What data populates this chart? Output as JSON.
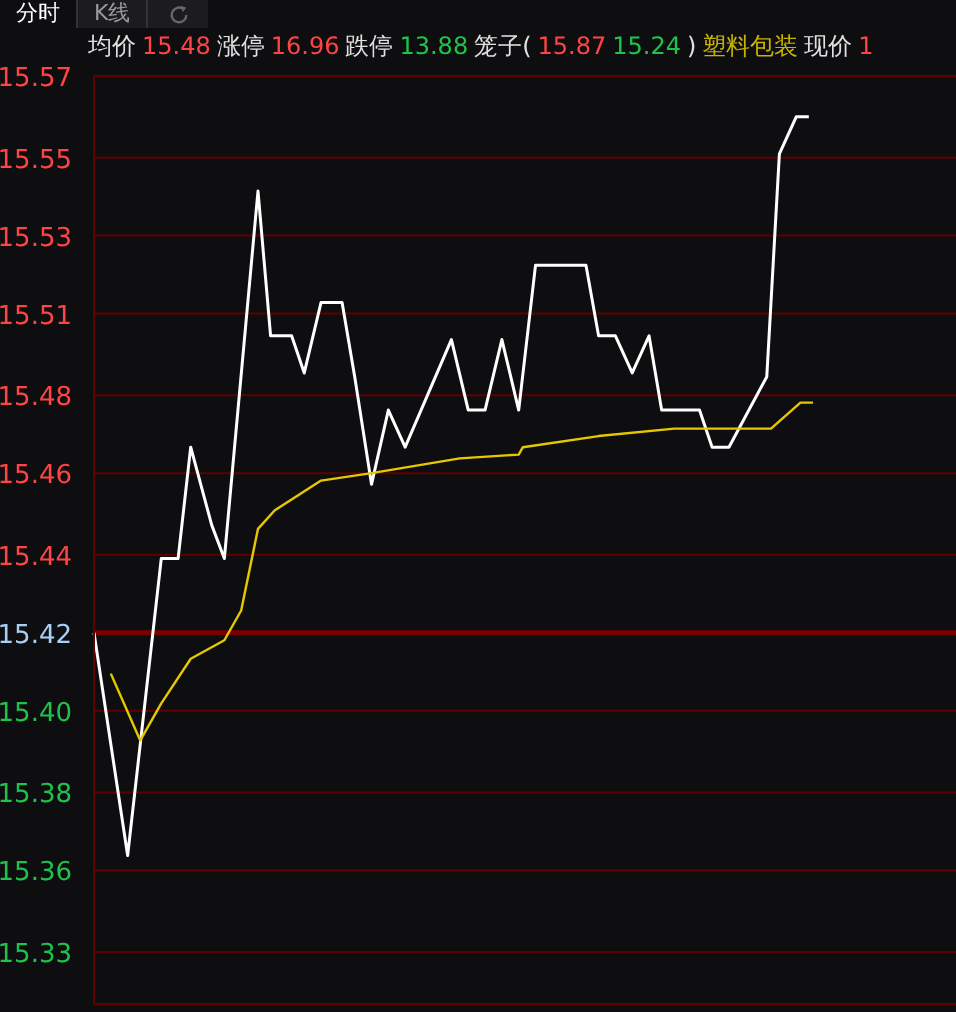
{
  "chart_data": {
    "type": "line",
    "categories": [
      null,
      null,
      null,
      null,
      null,
      null,
      null,
      null,
      null,
      null,
      null,
      null,
      null,
      null,
      null,
      null,
      null,
      null,
      null,
      null,
      null,
      null,
      null,
      null,
      null,
      null,
      null,
      null,
      null,
      null,
      null,
      null,
      null,
      null,
      null,
      null,
      null,
      null,
      null,
      null,
      null,
      null,
      null,
      null,
      null,
      null,
      null,
      null,
      null,
      null,
      null,
      null,
      null,
      null,
      null,
      null,
      null,
      null,
      null,
      null,
      null,
      null,
      null,
      null,
      null,
      null,
      null,
      null,
      null,
      null,
      null,
      null,
      null,
      null,
      null,
      null,
      null,
      null,
      null,
      null,
      null,
      null,
      null,
      null,
      null,
      null,
      null,
      null,
      null,
      null,
      null,
      null,
      null,
      null,
      null,
      null,
      null,
      null,
      null,
      null,
      null,
      null,
      null,
      null,
      null,
      null,
      null,
      null,
      null,
      null,
      null,
      null,
      null,
      null,
      null,
      null,
      null,
      null,
      null,
      null,
      null,
      null,
      null,
      null,
      null,
      null,
      null,
      null,
      null,
      null,
      null,
      null,
      null,
      null,
      null,
      null,
      null,
      null,
      null,
      null,
      null,
      null,
      null,
      null,
      null,
      null,
      null,
      null,
      null,
      null,
      null,
      null,
      null,
      null,
      null,
      null,
      null,
      null,
      null,
      null,
      null,
      null,
      null,
      null,
      null,
      null,
      null,
      null,
      null,
      null,
      null,
      null,
      null,
      null,
      null,
      null,
      null,
      null,
      null,
      null,
      null,
      null,
      null,
      null,
      null,
      null,
      null,
      null,
      null,
      null,
      null,
      null,
      null,
      null,
      null,
      null,
      null,
      null,
      null,
      null,
      null,
      null,
      null,
      null,
      null,
      null
    ],
    "series": [
      {
        "color": "#ffffff",
        "values": [
          15.42,
          null,
          null,
          null,
          null,
          null,
          null,
          null,
          15.36,
          null,
          null,
          null,
          null,
          null,
          null,
          null,
          15.44,
          null,
          null,
          null,
          15.44,
          null,
          null,
          15.47,
          null,
          null,
          null,
          null,
          15.449,
          null,
          null,
          15.44,
          null,
          null,
          null,
          null,
          null,
          null,
          null,
          15.539,
          null,
          null,
          15.5,
          null,
          null,
          null,
          null,
          15.5,
          null,
          null,
          15.49,
          null,
          null,
          null,
          15.509,
          null,
          null,
          null,
          null,
          15.509,
          null,
          null,
          15.489,
          null,
          null,
          null,
          15.46,
          null,
          null,
          null,
          15.48,
          null,
          null,
          null,
          15.47,
          null,
          null,
          null,
          null,
          null,
          null,
          null,
          null,
          null,
          null,
          15.499,
          null,
          null,
          null,
          15.48,
          null,
          null,
          null,
          15.48,
          null,
          null,
          null,
          15.499,
          null,
          null,
          null,
          15.48,
          null,
          null,
          null,
          15.519,
          null,
          null,
          null,
          null,
          null,
          null,
          null,
          null,
          null,
          null,
          null,
          15.519,
          null,
          null,
          15.5,
          null,
          null,
          null,
          15.5,
          null,
          null,
          null,
          15.49,
          null,
          null,
          null,
          15.5,
          null,
          null,
          15.48,
          null,
          null,
          null,
          null,
          null,
          null,
          null,
          null,
          15.48,
          null,
          null,
          15.47,
          null,
          null,
          null,
          15.47,
          null,
          null,
          null,
          null,
          null,
          null,
          null,
          null,
          15.489,
          null,
          null,
          15.549,
          null,
          null,
          null,
          15.559,
          null,
          null,
          15.559,
          null,
          null,
          null,
          null,
          null,
          null,
          null,
          null,
          null,
          null,
          null,
          null,
          null,
          null,
          null,
          null,
          null,
          null,
          null,
          null,
          null,
          null,
          null,
          null,
          null,
          null,
          null,
          null,
          null,
          null,
          null,
          null,
          null,
          null,
          null
        ]
      },
      {
        "color": "#e6c800",
        "values": [
          null,
          null,
          null,
          null,
          15.409,
          null,
          null,
          null,
          null,
          null,
          null,
          15.391,
          null,
          null,
          null,
          null,
          15.401,
          null,
          null,
          null,
          null,
          null,
          null,
          15.413,
          null,
          null,
          null,
          null,
          null,
          null,
          null,
          15.418,
          null,
          null,
          null,
          15.426,
          null,
          null,
          null,
          15.448,
          null,
          null,
          null,
          15.453,
          null,
          null,
          null,
          null,
          null,
          null,
          null,
          null,
          null,
          null,
          15.461,
          null,
          null,
          null,
          null,
          null,
          null,
          null,
          null,
          null,
          null,
          null,
          15.463,
          null,
          null,
          null,
          null,
          null,
          null,
          null,
          null,
          null,
          null,
          null,
          null,
          null,
          null,
          null,
          null,
          null,
          null,
          null,
          null,
          15.467,
          null,
          null,
          null,
          null,
          null,
          null,
          null,
          null,
          null,
          null,
          null,
          null,
          null,
          15.468,
          15.47,
          null,
          null,
          null,
          null,
          null,
          null,
          null,
          null,
          null,
          null,
          null,
          null,
          null,
          null,
          null,
          null,
          null,
          15.473,
          null,
          null,
          null,
          null,
          null,
          null,
          null,
          null,
          null,
          null,
          null,
          null,
          null,
          null,
          null,
          null,
          null,
          15.475,
          null,
          null,
          null,
          null,
          null,
          null,
          null,
          null,
          null,
          null,
          null,
          null,
          null,
          null,
          null,
          null,
          null,
          null,
          null,
          null,
          null,
          null,
          15.475,
          null,
          null,
          null,
          null,
          null,
          null,
          15.482,
          null,
          null,
          15.482,
          null,
          null,
          null,
          null,
          null,
          null,
          null,
          null,
          null,
          null,
          null,
          null,
          null,
          null,
          null,
          null,
          null,
          null,
          null,
          null,
          null,
          null,
          null,
          null,
          null,
          null,
          null,
          null,
          null,
          null,
          null,
          null,
          null,
          null
        ]
      }
    ],
    "ylim": [
      15.32,
      15.57
    ],
    "yticks": [
      {
        "value": 15.334,
        "label": "15.33"
      },
      {
        "value": 15.356,
        "label": "15.36"
      },
      {
        "value": 15.377,
        "label": "15.38"
      },
      {
        "value": 15.399,
        "label": "15.40"
      },
      {
        "value": 15.42,
        "label": "15.42"
      },
      {
        "value": 15.441,
        "label": "15.44"
      },
      {
        "value": 15.463,
        "label": "15.46"
      },
      {
        "value": 15.484,
        "label": "15.48"
      },
      {
        "value": 15.506,
        "label": "15.51"
      },
      {
        "value": 15.527,
        "label": "15.53"
      },
      {
        "value": 15.548,
        "label": "15.55"
      },
      {
        "value": 15.57,
        "label": "15.57"
      }
    ],
    "ref_lines": [
      {
        "axis": "y",
        "value": 15.42,
        "color": "#7a0000"
      }
    ],
    "grid": "y",
    "marker": "none",
    "line_style": "solid",
    "tick_labels": "y",
    "annotations": [
      "分时",
      "K线",
      "均价",
      "15.48",
      "涨停",
      "16.96",
      "跌停",
      "13.88",
      "笼子(",
      "15.87",
      "15.24",
      ")",
      "塑料包装",
      "现价",
      "1"
    ]
  }
}
